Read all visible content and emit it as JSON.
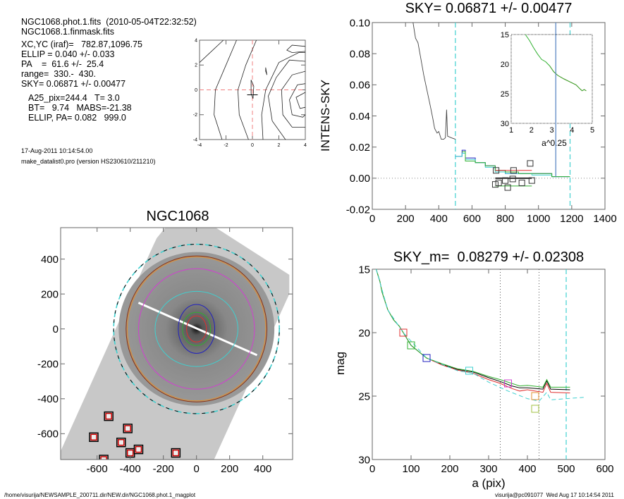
{
  "info": {
    "lines1": [
      "NGC1068.phot.1.fits  (2010-05-04T22:32:52)",
      "NGC1068.1.finmask.fits"
    ],
    "lines2": [
      "XC,YC (iraf)=   782.87,1096.75",
      "ELLIP = 0.040 +/- 0.033",
      "PA    =  61.6 +/-  25.4",
      "range=  330.-  430.",
      "SKY= 0.06871 +/- 0.00477"
    ],
    "lines3": [
      "A25_pix=244.4   T= 3.0",
      "BT=   9.74   MABS=-21.38",
      "ELLIP, PA= 0.082   999.0"
    ],
    "date": "17-Aug-2011 10:14:54.00",
    "program": "make_datalist0.pro (version HS230610/211210)"
  },
  "footer": {
    "path": "/home/visurija/NEWSAMPLE_200711.dir/NEW.dir/NGC1068.phot.1_magplot",
    "user_time": "visurija@pc091077  Wed Aug 17 10:14:54 2011"
  },
  "colors": {
    "red": "#e03030",
    "green": "#30b030",
    "blue": "#2020c0",
    "cyan": "#40d0d0",
    "magenta": "#d040d0",
    "orange": "#e09030",
    "yellowgreen": "#a0c040",
    "pinkdash": "#f08080",
    "brown": "#8b3010"
  },
  "chart_data": [
    {
      "id": "contour",
      "type": "line",
      "title": "",
      "xlim": [
        -4,
        4
      ],
      "ylim": [
        -4,
        4
      ],
      "xticks": [
        -4,
        -2,
        0,
        2,
        4
      ],
      "yticks": [
        -4,
        -2,
        0,
        2,
        4
      ],
      "crosshair": [
        0,
        0
      ],
      "contours": [
        [
          [
            -4,
            2.2
          ],
          [
            -3,
            3.2
          ],
          [
            -2.2,
            4
          ]
        ],
        [
          [
            -2.3,
            -4
          ],
          [
            -2.9,
            -2
          ],
          [
            -2.8,
            0
          ],
          [
            -2,
            2
          ],
          [
            -1.2,
            4
          ]
        ],
        [
          [
            -0.3,
            -4
          ],
          [
            -1,
            -2
          ],
          [
            -1.1,
            0
          ],
          [
            -0.5,
            2
          ],
          [
            0.3,
            4
          ]
        ],
        [
          [
            0.8,
            -4
          ],
          [
            0.7,
            -2
          ],
          [
            1,
            0
          ],
          [
            2,
            2.2
          ],
          [
            3.5,
            3
          ],
          [
            4,
            3
          ]
        ],
        [
          [
            4,
            2.3
          ],
          [
            2.8,
            2.4
          ],
          [
            1.8,
            1
          ],
          [
            1.2,
            -0.5
          ],
          [
            1.5,
            -2.5
          ],
          [
            2.5,
            -4
          ]
        ],
        [
          [
            4,
            1.5
          ],
          [
            3,
            1.2
          ],
          [
            2.2,
            0
          ],
          [
            2.3,
            -2
          ],
          [
            3,
            -3
          ],
          [
            4,
            -3
          ]
        ],
        [
          [
            4,
            0.5
          ],
          [
            3.4,
            0.4
          ],
          [
            2.8,
            -0.8
          ],
          [
            3,
            -2
          ],
          [
            3.8,
            -2.2
          ],
          [
            4,
            -2
          ]
        ],
        [
          [
            4,
            -0.2
          ],
          [
            3.3,
            -0.6
          ],
          [
            3.6,
            -1.5
          ],
          [
            4,
            -1.4
          ]
        ],
        [
          [
            4,
            3.5
          ],
          [
            3,
            3.6
          ],
          [
            2.6,
            3.2
          ],
          [
            3,
            3
          ],
          [
            4,
            3.1
          ]
        ],
        [
          [
            -0.1,
            0.8
          ],
          [
            0.1,
            0.3
          ],
          [
            0.05,
            -0.7
          ],
          [
            -0.1,
            -0.3
          ],
          [
            -0.1,
            0.8
          ]
        ],
        [
          [
            1,
            1.8
          ],
          [
            1.1,
            1.2
          ],
          [
            1,
            1.5
          ],
          [
            1,
            1.8
          ]
        ]
      ]
    },
    {
      "id": "sky",
      "type": "line",
      "title": "SKY= 0.06871 +/- 0.00477",
      "xlabel": "",
      "ylabel": "INTENS-SKY",
      "xlim": [
        0,
        1400
      ],
      "ylim": [
        -0.02,
        0.1
      ],
      "xticks": [
        0,
        200,
        400,
        600,
        800,
        1000,
        1200,
        1400
      ],
      "yticks": [
        -0.02,
        0.0,
        0.02,
        0.04,
        0.06,
        0.08,
        0.1
      ],
      "ytick_labels": [
        "-0.02",
        "0.00",
        "0.02",
        "0.04",
        "0.06",
        "0.08",
        "0.10"
      ],
      "profile": [
        [
          245,
          0.1
        ],
        [
          260,
          0.09
        ],
        [
          275,
          0.087
        ],
        [
          290,
          0.078
        ],
        [
          310,
          0.066
        ],
        [
          330,
          0.056
        ],
        [
          350,
          0.046
        ],
        [
          365,
          0.038
        ],
        [
          375,
          0.032
        ],
        [
          390,
          0.029
        ],
        [
          400,
          0.03
        ],
        [
          415,
          0.025
        ],
        [
          430,
          0.025
        ],
        [
          440,
          0.026
        ],
        [
          447,
          0.044
        ],
        [
          453,
          0.027
        ],
        [
          475,
          0.026
        ],
        [
          500,
          0.025
        ]
      ],
      "steps": [
        {
          "color": "blue",
          "points": [
            [
              500,
              0.014
            ],
            [
              540,
              0.018
            ],
            [
              560,
              0.013
            ],
            [
              620,
              0.01
            ],
            [
              680,
              0.008
            ],
            [
              740,
              0.005
            ],
            [
              800,
              0.003
            ],
            [
              880,
              0.003
            ],
            [
              960,
              0.003
            ],
            [
              1080,
              0.001
            ],
            [
              1190,
              0.001
            ]
          ]
        },
        {
          "color": "cyan",
          "points": [
            [
              500,
              0.014
            ],
            [
              540,
              0.016
            ],
            [
              560,
              0.012
            ],
            [
              620,
              0.01
            ],
            [
              680,
              0.007
            ],
            [
              740,
              0.004
            ],
            [
              800,
              0.003
            ],
            [
              880,
              0.003
            ],
            [
              960,
              0.002
            ],
            [
              1080,
              0.001
            ],
            [
              1190,
              0.001
            ]
          ]
        },
        {
          "color": "green",
          "points": [
            [
              540,
              0.017
            ],
            [
              560,
              0.011
            ],
            [
              620,
              0.01
            ],
            [
              680,
              0.008
            ],
            [
              740,
              0.005
            ],
            [
              800,
              0.004
            ],
            [
              880,
              0.003
            ],
            [
              960,
              0.003
            ],
            [
              1080,
              0.001
            ],
            [
              1190,
              0.001
            ]
          ]
        }
      ],
      "hlines": [
        {
          "color": "red",
          "y": 0.005,
          "x": [
            740,
            960
          ]
        },
        {
          "color": "black",
          "y": 0.0,
          "x": [
            740,
            960
          ]
        },
        {
          "color": "green",
          "y": -0.005,
          "x": [
            740,
            960
          ]
        }
      ],
      "squares": [
        [
          740,
          -0.004
        ],
        [
          760,
          -0.003
        ],
        [
          800,
          -0.0015
        ],
        [
          815,
          -0.006
        ],
        [
          845,
          -0.0005
        ],
        [
          850,
          0.005
        ],
        [
          900,
          -0.003
        ],
        [
          950,
          0.0095
        ],
        [
          960,
          -0.0015
        ],
        [
          745,
          0.005
        ]
      ],
      "vlines_dashed": [
        500,
        1190
      ],
      "zero_line": 0.0,
      "inset": {
        "xlabel": "a^0.25",
        "xlim": [
          1,
          5
        ],
        "ylim": [
          30,
          15
        ],
        "xticks": [
          1,
          2,
          3,
          4,
          5
        ],
        "yticks": [
          15,
          20,
          25,
          30
        ],
        "curve": [
          [
            1.7,
            15
          ],
          [
            1.9,
            16
          ],
          [
            2.1,
            17.2
          ],
          [
            2.3,
            18.3
          ],
          [
            2.5,
            19.2
          ],
          [
            2.7,
            19.6
          ],
          [
            2.9,
            20.3
          ],
          [
            3.1,
            21.3
          ],
          [
            3.3,
            21.9
          ],
          [
            3.6,
            22.5
          ],
          [
            3.9,
            23.0
          ],
          [
            4.2,
            23.5
          ],
          [
            4.4,
            24.2
          ],
          [
            4.5,
            24.5
          ],
          [
            4.6,
            24.3
          ],
          [
            4.7,
            24.5
          ]
        ],
        "vline": 3.2
      }
    },
    {
      "id": "image",
      "type": "scatter",
      "title": "NGC1068",
      "xlim": [
        -820,
        580
      ],
      "ylim": [
        -748,
        580
      ],
      "xticks": [
        -600,
        -400,
        -200,
        0,
        200,
        400
      ],
      "yticks": [
        -600,
        -400,
        -200,
        0,
        200,
        400
      ],
      "ellipses": [
        {
          "color": "red",
          "a": 60,
          "b": 75
        },
        {
          "color": "green",
          "a": 85,
          "b": 95
        },
        {
          "color": "blue",
          "a": 110,
          "b": 140
        },
        {
          "color": "cyan",
          "a": 250,
          "b": 215
        },
        {
          "color": "magenta",
          "a": 350,
          "b": 345
        },
        {
          "color": "orange",
          "a": 418,
          "b": 412
        },
        {
          "color": "brown",
          "a": 425,
          "b": 418
        },
        {
          "color": "cyan",
          "a": 500,
          "b": 485,
          "dashed": true
        }
      ],
      "masked_regions": [
        [
          -530,
          -500
        ],
        [
          -620,
          -620
        ],
        [
          -415,
          -570
        ],
        [
          -455,
          -650
        ],
        [
          -400,
          -710
        ],
        [
          -350,
          -690
        ],
        [
          -125,
          -710
        ],
        [
          -560,
          -748
        ]
      ],
      "major_axis_line": [
        [
          -350,
          150
        ],
        [
          365,
          -150
        ]
      ]
    },
    {
      "id": "mag",
      "type": "line",
      "title": "SKY_m=  0.08279 +/- 0.02308",
      "xlabel": "a (pix)",
      "ylabel": "mag",
      "xlim": [
        0,
        600
      ],
      "ylim": [
        30,
        15
      ],
      "xticks": [
        0,
        100,
        200,
        300,
        400,
        500,
        600
      ],
      "yticks": [
        15,
        20,
        25,
        30
      ],
      "series": [
        {
          "color": "black",
          "points": [
            [
              10,
              15
            ],
            [
              20,
              16
            ],
            [
              25,
              16.8
            ],
            [
              40,
              18.2
            ],
            [
              55,
              19
            ],
            [
              70,
              19.5
            ],
            [
              80,
              20
            ],
            [
              100,
              21
            ],
            [
              120,
              21.5
            ],
            [
              140,
              22
            ],
            [
              180,
              22.5
            ],
            [
              220,
              22.9
            ],
            [
              260,
              23.1
            ],
            [
              300,
              23.55
            ],
            [
              330,
              23.85
            ],
            [
              360,
              24.2
            ],
            [
              380,
              24.35
            ],
            [
              400,
              24.35
            ],
            [
              440,
              24.45
            ],
            [
              450,
              23.8
            ],
            [
              460,
              24.45
            ],
            [
              510,
              24.5
            ]
          ]
        },
        {
          "color": "red",
          "points": [
            [
              140,
              22
            ],
            [
              180,
              22.55
            ],
            [
              220,
              22.95
            ],
            [
              260,
              23.2
            ],
            [
              300,
              23.7
            ],
            [
              330,
              24.0
            ],
            [
              360,
              24.4
            ],
            [
              380,
              24.6
            ],
            [
              400,
              24.5
            ],
            [
              440,
              24.7
            ],
            [
              450,
              24.0
            ],
            [
              460,
              24.7
            ],
            [
              510,
              24.75
            ]
          ]
        },
        {
          "color": "green",
          "points": [
            [
              10,
              15
            ],
            [
              20,
              16
            ],
            [
              25,
              16.8
            ],
            [
              40,
              18.2
            ],
            [
              55,
              19
            ],
            [
              70,
              19.5
            ],
            [
              80,
              20
            ],
            [
              100,
              21
            ],
            [
              120,
              21.5
            ],
            [
              140,
              22
            ],
            [
              180,
              22.45
            ],
            [
              220,
              22.85
            ],
            [
              260,
              23.05
            ],
            [
              300,
              23.45
            ],
            [
              330,
              23.7
            ],
            [
              360,
              24.0
            ],
            [
              380,
              24.2
            ],
            [
              400,
              24.15
            ],
            [
              440,
              24.3
            ],
            [
              450,
              23.7
            ],
            [
              460,
              24.3
            ],
            [
              510,
              24.3
            ]
          ]
        },
        {
          "color": "cyan",
          "dashed": true,
          "points": [
            [
              10,
              15
            ],
            [
              40,
              18.2
            ],
            [
              80,
              20
            ],
            [
              140,
              22
            ],
            [
              220,
              23
            ],
            [
              260,
              23.2
            ],
            [
              300,
              23.9
            ],
            [
              350,
              24.6
            ],
            [
              400,
              25.2
            ],
            [
              430,
              25.4
            ],
            [
              450,
              24.7
            ],
            [
              460,
              25.3
            ],
            [
              500,
              25.2
            ],
            [
              545,
              25.1
            ]
          ]
        }
      ],
      "squares": [
        {
          "color": "red",
          "x": 80,
          "y": 20
        },
        {
          "color": "green",
          "x": 100,
          "y": 21
        },
        {
          "color": "blue",
          "x": 140,
          "y": 22
        },
        {
          "color": "cyan",
          "x": 250,
          "y": 23
        },
        {
          "color": "magenta",
          "x": 350,
          "y": 24
        },
        {
          "color": "orange",
          "x": 420,
          "y": 25
        },
        {
          "color": "yellowgreen",
          "x": 420,
          "y": 26
        }
      ],
      "vlines_dotted": [
        330,
        430
      ],
      "vlines_dashed": [
        500
      ]
    }
  ]
}
